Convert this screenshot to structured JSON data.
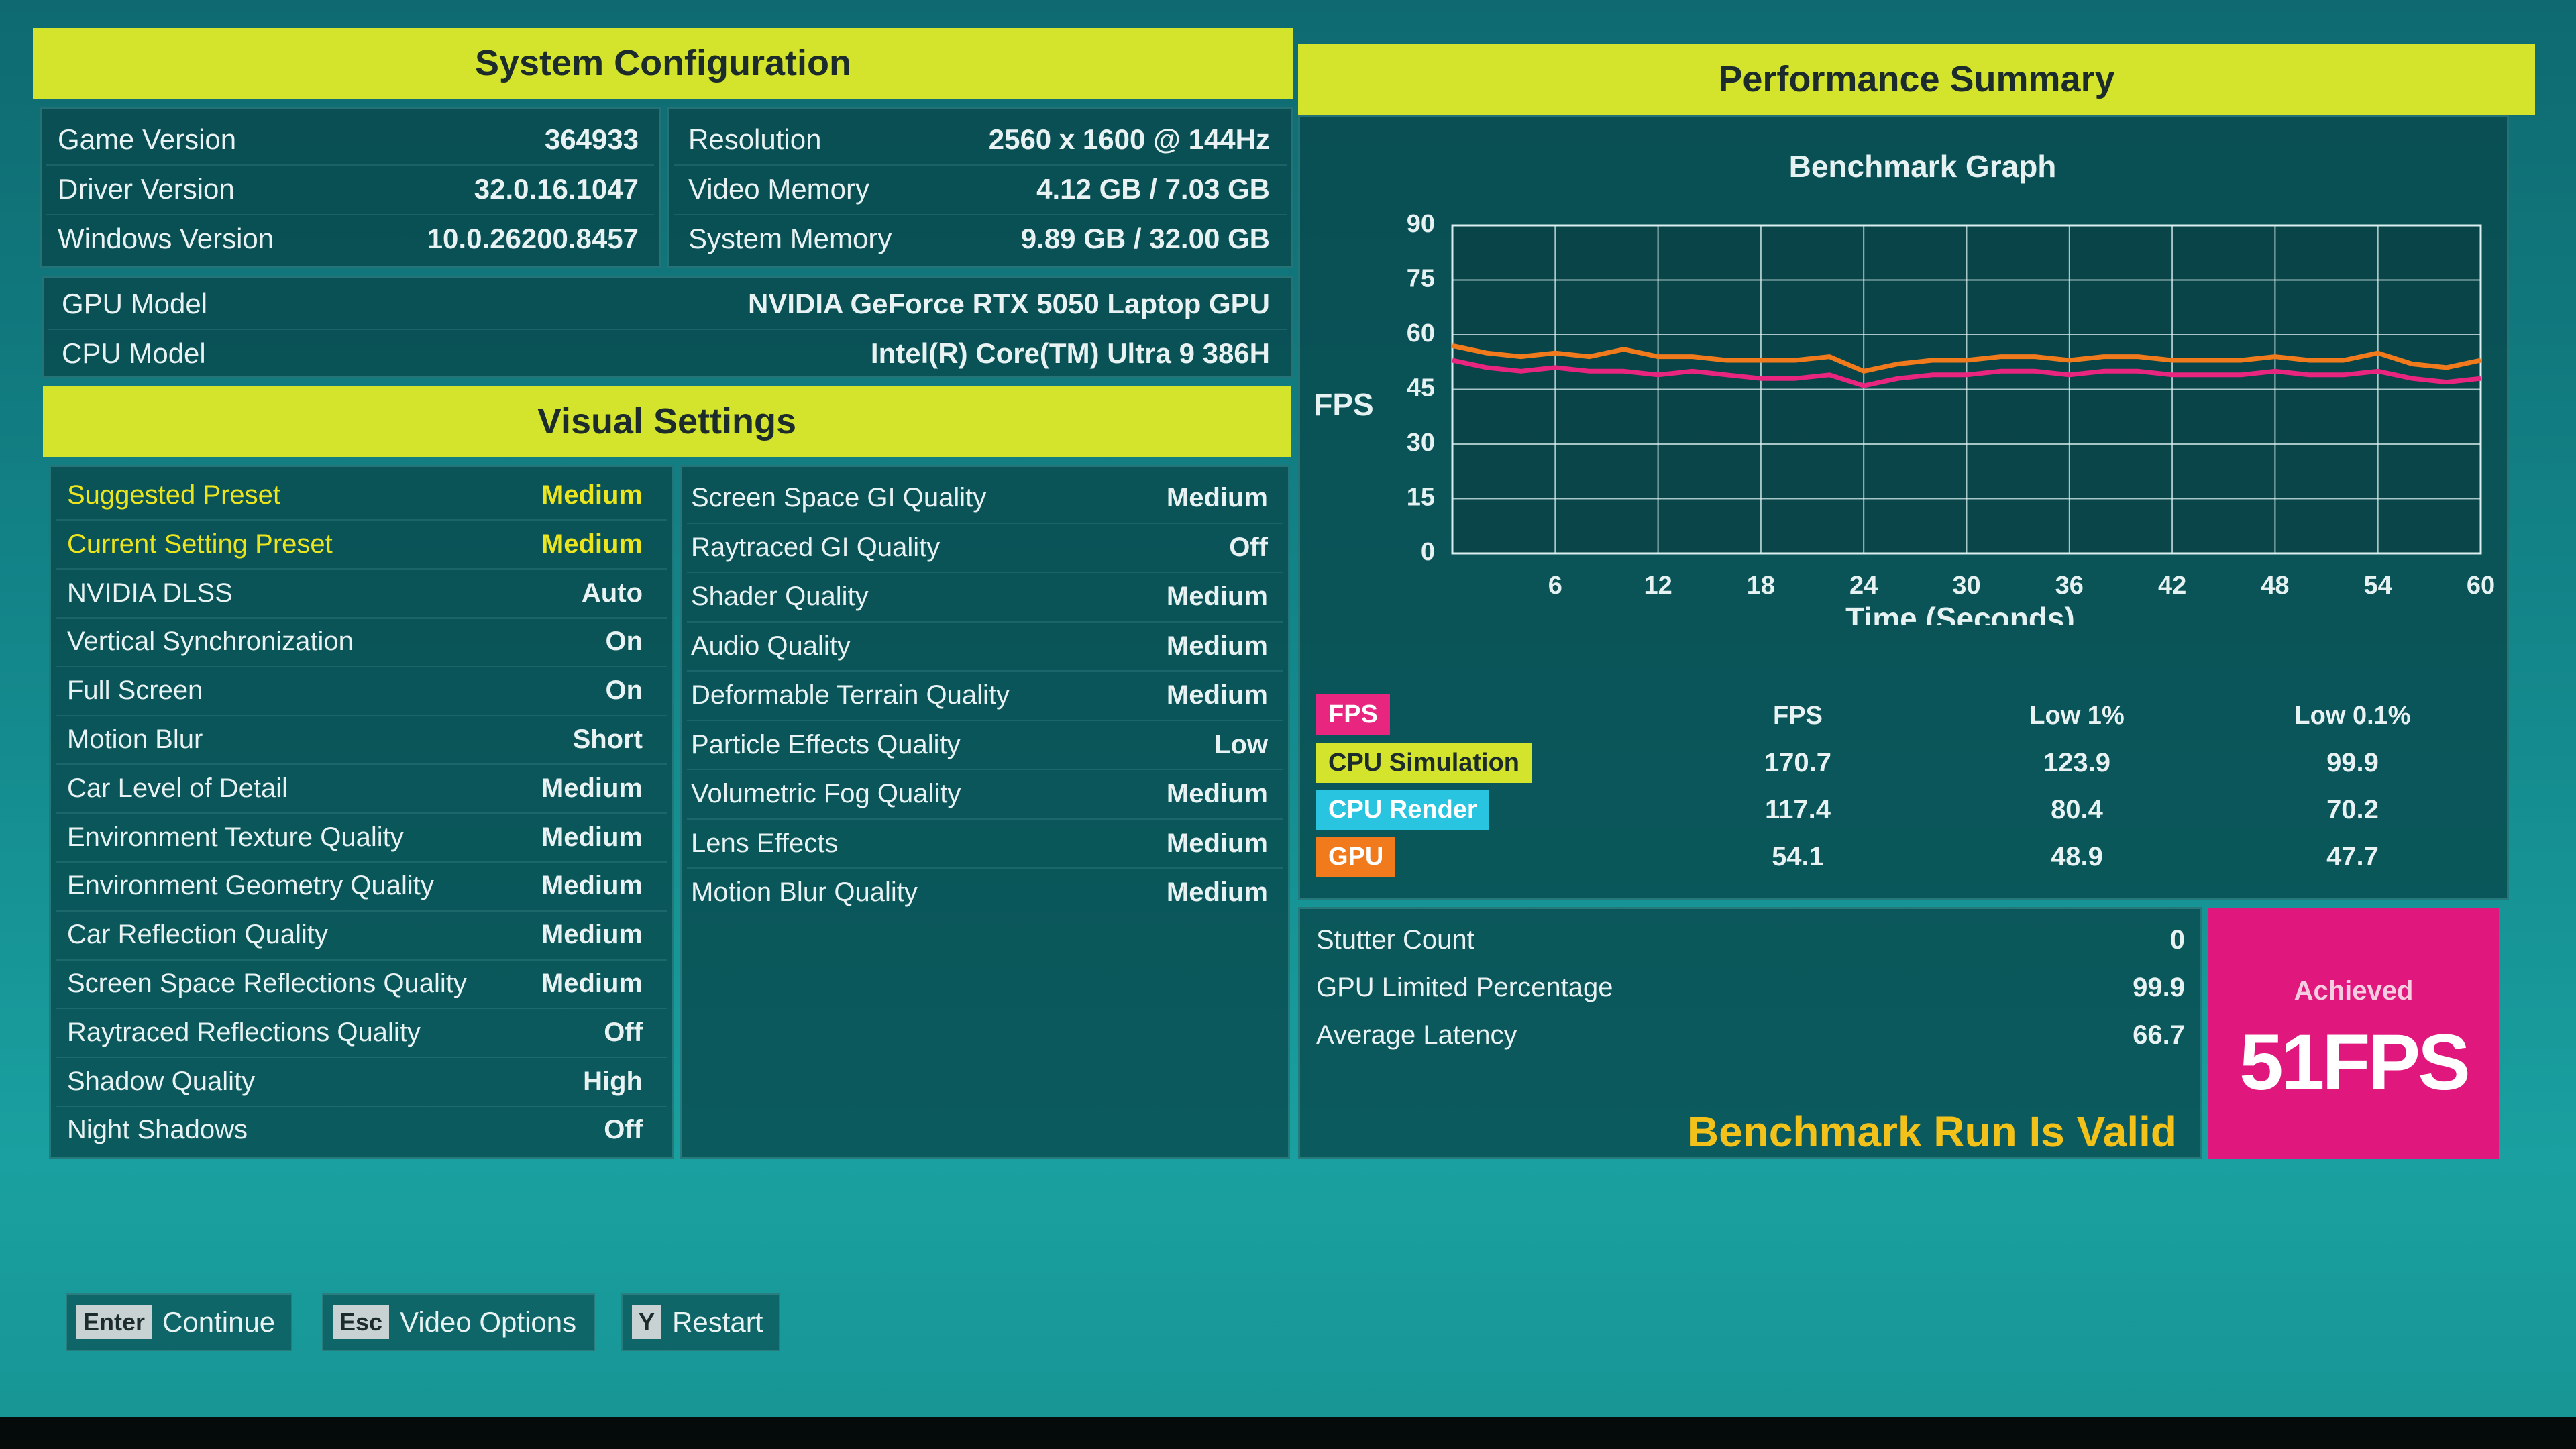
{
  "system_configuration": {
    "title": "System Configuration",
    "left": [
      {
        "label": "Game Version",
        "value": "364933"
      },
      {
        "label": "Driver Version",
        "value": "32.0.16.1047"
      },
      {
        "label": "Windows Version",
        "value": "10.0.26200.8457"
      }
    ],
    "right": [
      {
        "label": "Resolution",
        "value": "2560 x 1600 @ 144Hz"
      },
      {
        "label": "Video Memory",
        "value": "4.12 GB / 7.03 GB"
      },
      {
        "label": "System Memory",
        "value": "9.89 GB / 32.00 GB"
      }
    ],
    "hardware": [
      {
        "label": "GPU Model",
        "value": "NVIDIA GeForce RTX 5050 Laptop GPU"
      },
      {
        "label": "CPU Model",
        "value": "Intel(R) Core(TM) Ultra 9 386H"
      }
    ]
  },
  "visual_settings": {
    "title": "Visual Settings",
    "highlight_color": "#ece51e",
    "left": [
      {
        "label": "Suggested Preset",
        "value": "Medium",
        "highlight": true
      },
      {
        "label": "Current Setting Preset",
        "value": "Medium",
        "highlight": true
      },
      {
        "label": "NVIDIA DLSS",
        "value": "Auto"
      },
      {
        "label": "Vertical Synchronization",
        "value": "On"
      },
      {
        "label": "Full Screen",
        "value": "On"
      },
      {
        "label": "Motion Blur",
        "value": "Short"
      },
      {
        "label": "Car Level of Detail",
        "value": "Medium"
      },
      {
        "label": "Environment Texture Quality",
        "value": "Medium"
      },
      {
        "label": "Environment Geometry Quality",
        "value": "Medium"
      },
      {
        "label": "Car Reflection Quality",
        "value": "Medium"
      },
      {
        "label": "Screen Space Reflections Quality",
        "value": "Medium"
      },
      {
        "label": "Raytraced Reflections Quality",
        "value": "Off"
      },
      {
        "label": "Shadow Quality",
        "value": "High"
      },
      {
        "label": "Night Shadows",
        "value": "Off"
      }
    ],
    "right": [
      {
        "label": "Screen Space GI Quality",
        "value": "Medium"
      },
      {
        "label": "Raytraced GI Quality",
        "value": "Off"
      },
      {
        "label": "Shader Quality",
        "value": "Medium"
      },
      {
        "label": "Audio Quality",
        "value": "Medium"
      },
      {
        "label": "Deformable Terrain Quality",
        "value": "Medium"
      },
      {
        "label": "Particle Effects Quality",
        "value": "Low"
      },
      {
        "label": "Volumetric Fog Quality",
        "value": "Medium"
      },
      {
        "label": "Lens Effects",
        "value": "Medium"
      },
      {
        "label": "Motion Blur Quality",
        "value": "Medium"
      }
    ]
  },
  "performance_summary": {
    "title": "Performance Summary",
    "chart_data": {
      "type": "line",
      "title": "Benchmark Graph",
      "x_label": "Time (Seconds)",
      "y_label": "FPS",
      "xlim": [
        0,
        60
      ],
      "ylim": [
        0,
        90
      ],
      "xticks": [
        6,
        12,
        18,
        24,
        30,
        36,
        42,
        48,
        54,
        60
      ],
      "yticks": [
        0,
        15,
        30,
        45,
        60,
        75,
        90
      ],
      "grid": true,
      "x": [
        0,
        2,
        4,
        6,
        8,
        10,
        12,
        14,
        16,
        18,
        20,
        22,
        24,
        26,
        28,
        30,
        32,
        34,
        36,
        38,
        40,
        42,
        44,
        46,
        48,
        50,
        52,
        54,
        56,
        58,
        60
      ],
      "series": [
        {
          "color": "#e8257f",
          "values": [
            53,
            51,
            50,
            51,
            50,
            50,
            49,
            50,
            49,
            48,
            48,
            49,
            46,
            48,
            49,
            49,
            50,
            50,
            49,
            50,
            50,
            49,
            49,
            49,
            50,
            49,
            49,
            50,
            48,
            47,
            48
          ]
        },
        {
          "color": "#f07a1c",
          "values": [
            57,
            55,
            54,
            55,
            54,
            56,
            54,
            54,
            53,
            53,
            53,
            54,
            50,
            52,
            53,
            53,
            54,
            54,
            53,
            54,
            54,
            53,
            53,
            53,
            54,
            53,
            53,
            55,
            52,
            51,
            53
          ]
        }
      ]
    },
    "stats": {
      "corner_label": "FPS",
      "corner_color": "#e8257f",
      "columns": [
        "FPS",
        "Low 1%",
        "Low 0.1%"
      ],
      "rows": [
        {
          "label": "CPU Simulation",
          "color": "#d4e32c",
          "values": [
            170.7,
            123.9,
            99.9
          ]
        },
        {
          "label": "CPU Render",
          "color": "#29c4e0",
          "values": [
            117.4,
            80.4,
            70.2
          ]
        },
        {
          "label": "GPU",
          "color": "#f07a1c",
          "values": [
            54.1,
            48.9,
            47.7
          ]
        }
      ]
    },
    "metrics": [
      {
        "label": "Stutter Count",
        "value": 0
      },
      {
        "label": "GPU Limited Percentage",
        "value": 99.9
      },
      {
        "label": "Average Latency",
        "value": 66.7
      }
    ],
    "validity": "Benchmark Run Is Valid",
    "achieved": {
      "label": "Achieved",
      "value": 51,
      "unit": "FPS"
    }
  },
  "buttons": [
    {
      "key": "Enter",
      "label": "Continue"
    },
    {
      "key": "Esc",
      "label": "Video Options"
    },
    {
      "key": "Y",
      "label": "Restart"
    }
  ]
}
